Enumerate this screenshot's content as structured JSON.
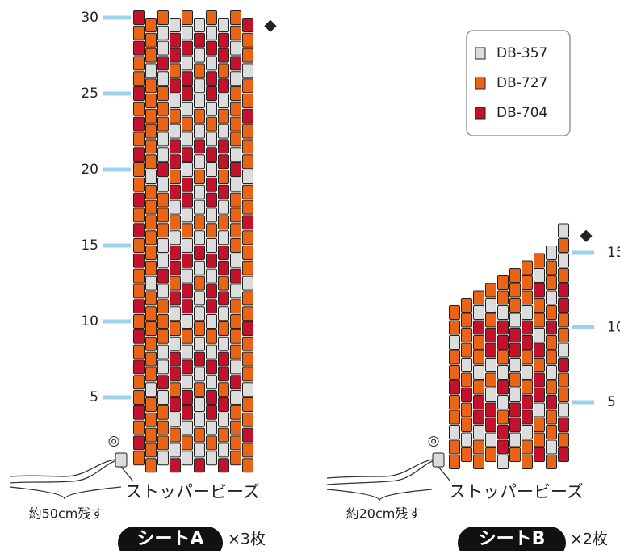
{
  "legend": [
    {
      "key": "W",
      "label": "DB-357",
      "color": "#dcdcdc"
    },
    {
      "key": "O",
      "label": "DB-727",
      "color": "#ea6418"
    },
    {
      "key": "R",
      "label": "DB-704",
      "color": "#c3132c"
    }
  ],
  "sheet_a": {
    "name": "シートA",
    "count": "×3枚",
    "row_labels": [
      30,
      25,
      20,
      15,
      10,
      5
    ],
    "marker": "◆",
    "stopper_mark": "◎",
    "stopper_label": "ストッパービーズ",
    "thread_label": "約50cm残す",
    "rows": [
      "ROOWOWOWOR",
      "OOWRWRWROO",
      "ROWRRWRRWO",
      "OWROWOWORW",
      "OOWRRWRRWO",
      "ROOWRWRWOO",
      "OOOOWOWOOR",
      "ROOWOWOWOO",
      "OOWRWRWROO",
      "ROWRRWRRWO",
      "OWROWOWORW",
      "OOWRRWRRWO",
      "ROOWRWRWOO",
      "OOOOWOWOOR",
      "ROOWOWOWOO",
      "OOWRWRWROO",
      "ROWRRWRRWO",
      "OWROWOWORW",
      "OOWRRWRRWO",
      "ROOWRWRWOO",
      "OOOOWOWOOR",
      "ROOWOWOWOO",
      "OOWRWRWROO",
      "ROWRRWRRWO",
      "OWROWOWORW",
      "OOWRRWRRWO",
      "ROOWRWRWOO",
      "OOOOWOWOOR",
      "ROOWOWOWOO",
      "OOWRWRWROO"
    ]
  },
  "sheet_b": {
    "name": "シートB",
    "count": "×2枚",
    "row_labels": [
      15,
      10,
      5
    ],
    "marker": "◆",
    "stopper_mark": "◎",
    "stopper_label": "ストッパービーズ",
    "thread_label": "約20cm残す",
    "columns": [
      "OOWOOROOWOO",
      "OWOOROWOOOO",
      "OOWRROWOORWO",
      "OWRRWOWRROWO",
      "WRROWRWORRWOO",
      "OWRRWOWRRWOOO",
      "OOWRROWORRWOOO",
      "ROOWRRORWOORWO",
      "OWOOROWOOROWOOW",
      "RORWOORWOORROWOW"
    ]
  }
}
